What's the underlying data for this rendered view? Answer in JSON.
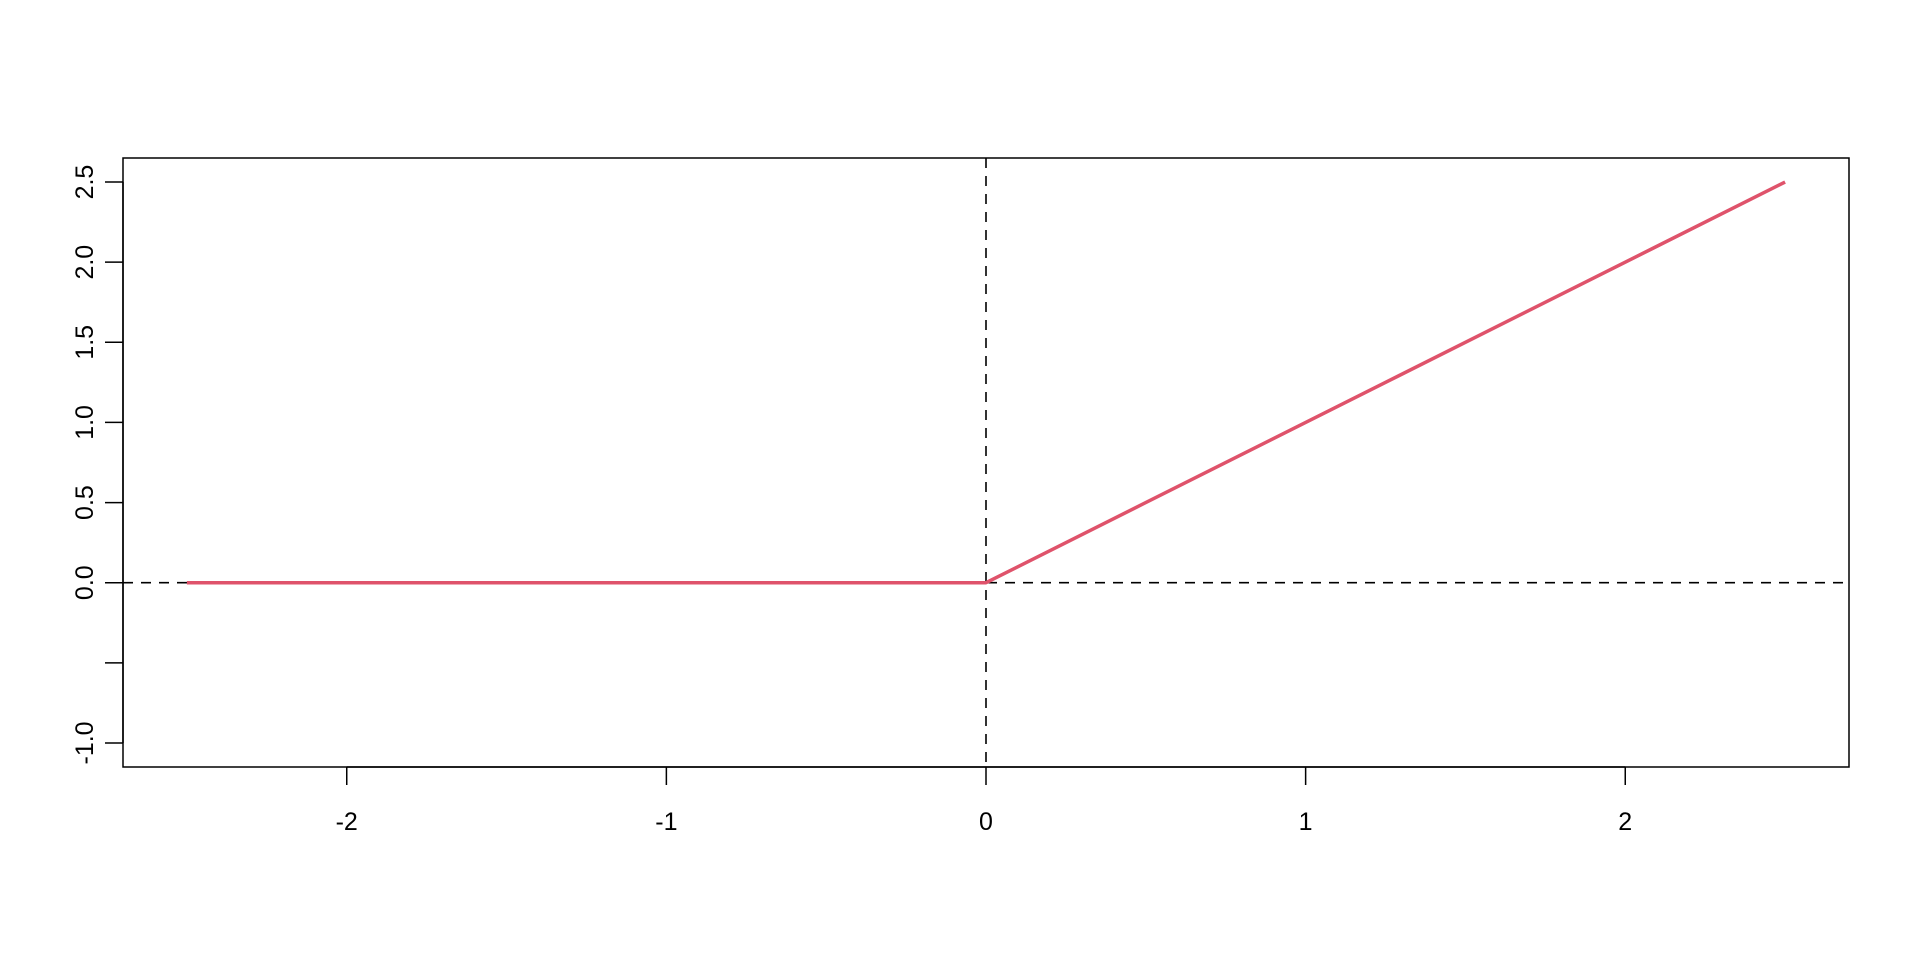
{
  "chart_data": {
    "type": "line",
    "title": "",
    "xlabel": "",
    "ylabel": "",
    "xlim": [
      -2.7,
      2.7
    ],
    "ylim": [
      -1.15,
      2.65
    ],
    "x_ticks": [
      -2,
      -1,
      0,
      1,
      2
    ],
    "x_tick_labels": [
      "-2",
      "-1",
      "0",
      "1",
      "2"
    ],
    "y_ticks": [
      -1.0,
      -0.5,
      0.0,
      0.5,
      1.0,
      1.5,
      2.0,
      2.5
    ],
    "y_tick_labels": [
      "-1.0",
      "",
      "0.0",
      "0.5",
      "1.0",
      "1.5",
      "2.0",
      "2.5"
    ],
    "grid": false,
    "reference_lines": [
      {
        "orientation": "vertical",
        "value": 0,
        "style": "dashed",
        "color": "#000000"
      },
      {
        "orientation": "horizontal",
        "value": 0,
        "style": "dashed",
        "color": "#000000"
      }
    ],
    "series": [
      {
        "x": [
          -2.5,
          0,
          2.5
        ],
        "y": [
          0,
          0,
          2.5
        ],
        "color": "#DF536B"
      }
    ]
  }
}
